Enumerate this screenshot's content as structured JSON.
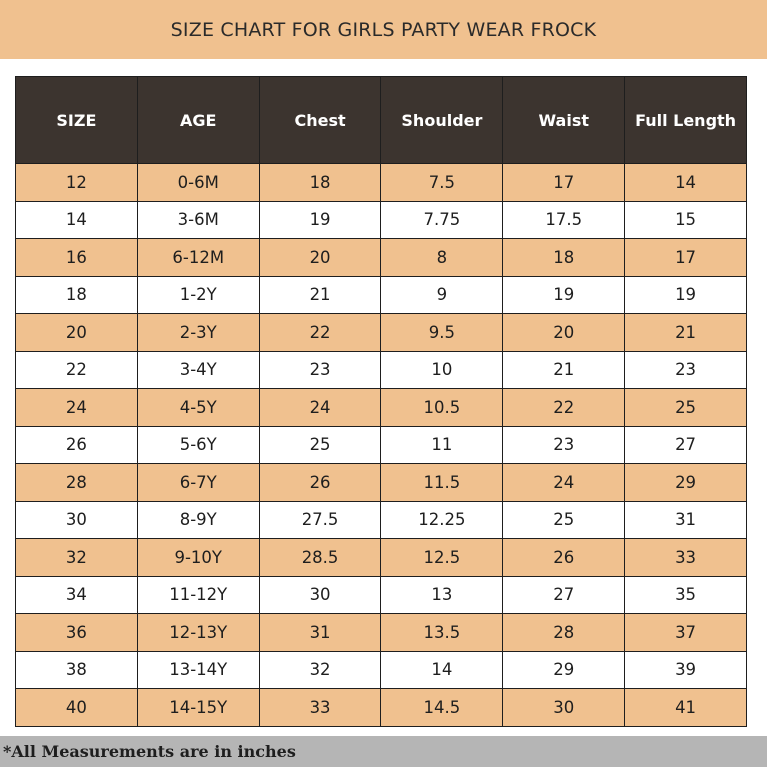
{
  "title": "SIZE CHART FOR GIRLS PARTY WEAR FROCK",
  "table": {
    "headers": [
      "SIZE",
      "AGE",
      "Chest",
      "Shoulder",
      "Waist",
      "Full Length"
    ],
    "rows": [
      [
        "12",
        "0-6M",
        "18",
        "7.5",
        "17",
        "14"
      ],
      [
        "14",
        "3-6M",
        "19",
        "7.75",
        "17.5",
        "15"
      ],
      [
        "16",
        "6-12M",
        "20",
        "8",
        "18",
        "17"
      ],
      [
        "18",
        "1-2Y",
        "21",
        "9",
        "19",
        "19"
      ],
      [
        "20",
        "2-3Y",
        "22",
        "9.5",
        "20",
        "21"
      ],
      [
        "22",
        "3-4Y",
        "23",
        "10",
        "21",
        "23"
      ],
      [
        "24",
        "4-5Y",
        "24",
        "10.5",
        "22",
        "25"
      ],
      [
        "26",
        "5-6Y",
        "25",
        "11",
        "23",
        "27"
      ],
      [
        "28",
        "6-7Y",
        "26",
        "11.5",
        "24",
        "29"
      ],
      [
        "30",
        "8-9Y",
        "27.5",
        "12.25",
        "25",
        "31"
      ],
      [
        "32",
        "9-10Y",
        "28.5",
        "12.5",
        "26",
        "33"
      ],
      [
        "34",
        "11-12Y",
        "30",
        "13",
        "27",
        "35"
      ],
      [
        "36",
        "12-13Y",
        "31",
        "13.5",
        "28",
        "37"
      ],
      [
        "38",
        "13-14Y",
        "32",
        "14",
        "29",
        "39"
      ],
      [
        "40",
        "14-15Y",
        "33",
        "14.5",
        "30",
        "41"
      ]
    ]
  },
  "footer": "*All Measurements are in inches",
  "colors": {
    "accent": "#f0c18f",
    "header_bg": "#3c342f",
    "footer_bg": "#b5b5b5"
  }
}
